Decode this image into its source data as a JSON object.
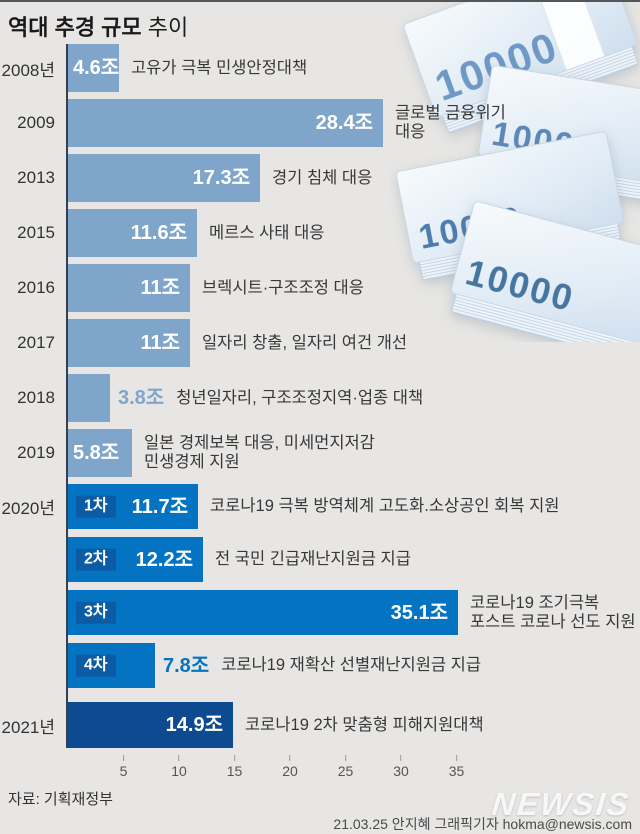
{
  "page": {
    "title_bold": "역대 추경 규모",
    "title_regular": "추이",
    "source": "자료: 기획재정부",
    "watermark": "NEWSIS",
    "credit": "21.03.25 안지혜 그래픽기자 hokma@newsis.com"
  },
  "money": {
    "label": "10000"
  },
  "colors": {
    "background": "#e7e6e4",
    "bar_light": "#7fa6ca",
    "bar_bright": "#0473c2",
    "bar_navy": "#0d4a8f",
    "badge_bg": "#0b5ca4",
    "value_out_light": "#7fa6ca",
    "value_out_bright": "#0473c2",
    "axis_line": "#36414d"
  },
  "chart_data": {
    "type": "bar",
    "orientation": "horizontal",
    "title": "역대 추경 규모 추이",
    "unit": "조 원 (trillion KRW)",
    "x_ticks": [
      5,
      10,
      15,
      20,
      25,
      30,
      35
    ],
    "xlim": [
      0,
      37
    ],
    "rows": [
      {
        "year": "2008년",
        "badge": "",
        "value": 4.6,
        "value_label": "4.6조",
        "desc_lines": [
          "고유가 극복 민생안정대책"
        ],
        "style": "light",
        "value_pos": "in-left"
      },
      {
        "year": "2009",
        "badge": "",
        "value": 28.4,
        "value_label": "28.4조",
        "desc_lines": [
          "글로벌 금융위기",
          "대응"
        ],
        "style": "light",
        "value_pos": "in-right"
      },
      {
        "year": "2013",
        "badge": "",
        "value": 17.3,
        "value_label": "17.3조",
        "desc_lines": [
          "경기 침체 대응"
        ],
        "style": "light",
        "value_pos": "in-right"
      },
      {
        "year": "2015",
        "badge": "",
        "value": 11.6,
        "value_label": "11.6조",
        "desc_lines": [
          "메르스 사태 대응"
        ],
        "style": "light",
        "value_pos": "in-right"
      },
      {
        "year": "2016",
        "badge": "",
        "value": 11,
        "value_label": "11조",
        "desc_lines": [
          "브렉시트·구조조정 대응"
        ],
        "style": "light",
        "value_pos": "in-right"
      },
      {
        "year": "2017",
        "badge": "",
        "value": 11,
        "value_label": "11조",
        "desc_lines": [
          "일자리 창출, 일자리 여건 개선"
        ],
        "style": "light",
        "value_pos": "in-right"
      },
      {
        "year": "2018",
        "badge": "",
        "value": 3.8,
        "value_label": "3.8조",
        "desc_lines": [
          "청년일자리, 구조조정지역·업종 대책"
        ],
        "style": "light",
        "value_pos": "out"
      },
      {
        "year": "2019",
        "badge": "",
        "value": 5.8,
        "value_label": "5.8조",
        "desc_lines": [
          "일본 경제보복 대응, 미세먼지저감",
          "민생경제 지원"
        ],
        "style": "light",
        "value_pos": "in-left"
      },
      {
        "year": "2020년",
        "badge": "1차",
        "value": 11.7,
        "value_label": "11.7조",
        "desc_lines": [
          "코로나19 극복 방역체계 고도화.소상공인 회복 지원"
        ],
        "style": "bright",
        "value_pos": "in-right"
      },
      {
        "year": "",
        "badge": "2차",
        "value": 12.2,
        "value_label": "12.2조",
        "desc_lines": [
          "전 국민 긴급재난지원금 지급"
        ],
        "style": "bright",
        "value_pos": "in-right"
      },
      {
        "year": "",
        "badge": "3차",
        "value": 35.1,
        "value_label": "35.1조",
        "desc_lines": [
          "코로나19 조기극복",
          "포스트 코로나 선도 지원"
        ],
        "style": "bright",
        "value_pos": "in-right"
      },
      {
        "year": "",
        "badge": "4차",
        "value": 7.8,
        "value_label": "7.8조",
        "desc_lines": [
          "코로나19 재확산 선별재난지원금 지급"
        ],
        "style": "bright",
        "value_pos": "out"
      },
      {
        "year": "2021년",
        "badge": "",
        "value": 14.9,
        "value_label": "14.9조",
        "desc_lines": [
          "코로나19 2차 맞춤형 피해지원대책"
        ],
        "style": "navy",
        "value_pos": "in-right"
      }
    ]
  }
}
